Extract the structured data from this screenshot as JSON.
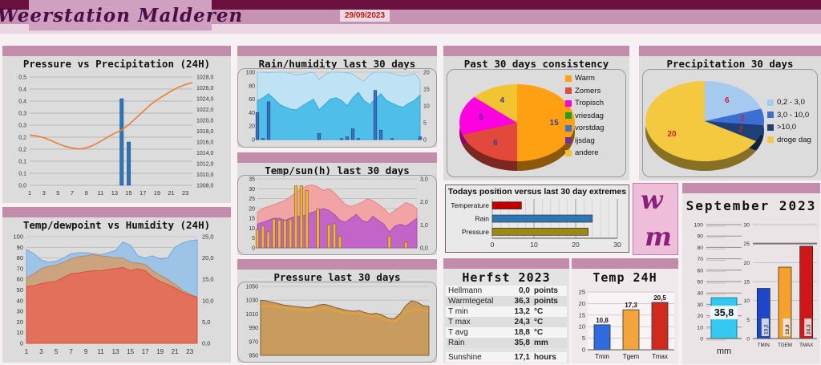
{
  "header": {
    "title": "Weerstation Malderen",
    "date": "29/09/2023",
    "logo_letters": {
      "top": "w",
      "bottom": "m"
    }
  },
  "colors": {
    "band_dark": "#6a1140",
    "band_mid": "#c793b2",
    "band_light": "#ead6e2",
    "panel_strip": "#c38cab",
    "panel_body": "#dcdcdc",
    "date_text": "#c41111"
  },
  "ui": {
    "panels": {
      "p1_title": "Pressure vs Precipitation (24H)",
      "p2_title": "Temp/dewpoint vs Humidity (24H)",
      "p3_title": "Rain/humidity last 30 days",
      "p4_title": "Temp/sun(h) last 30 days",
      "p5_title": "Pressure last 30 days",
      "p6_title": "Past 30 days consistency",
      "p7_title": "Precipitation 30 days",
      "p8_title": "Todays position versus last 30 day extremes",
      "p10_title": "Herfst 2023",
      "p11_title": "Temp 24H",
      "p12_title": "September 2023"
    },
    "herfst_rows": [
      {
        "label": "Hellmann",
        "value": "0,0",
        "unit": "points"
      },
      {
        "label": "Warmtegetal",
        "value": "36,3",
        "unit": "points"
      },
      {
        "label": "T min",
        "value": "13,2",
        "unit": "°C"
      },
      {
        "label": "T max",
        "value": "24,3",
        "unit": "°C"
      },
      {
        "label": "T avg",
        "value": "18,8",
        "unit": "°C"
      },
      {
        "label": "Rain",
        "value": "35,8",
        "unit": "mm"
      },
      {
        "label": "Sunshine",
        "value": "17,1",
        "unit": "hours"
      }
    ]
  },
  "chart_data": [
    {
      "id": "pressure_precip_24h",
      "type": "line",
      "title": "Pressure vs Precipitation (24H)",
      "x_ticks": [
        "1",
        "3",
        "5",
        "7",
        "9",
        "11",
        "13",
        "15",
        "17",
        "19",
        "21",
        "23"
      ],
      "left_ticks": [
        "0,5",
        "0,4",
        "0,4",
        "0,3",
        "0,3",
        "0,2",
        "0,2",
        "0,1",
        "0,1",
        "0,0"
      ],
      "right_ticks": [
        "1028,0",
        "1026,0",
        "1024,0",
        "1022,0",
        "1020,0",
        "1018,0",
        "1016,0",
        "1014,0",
        "1012,0",
        "1010,0",
        "1008,0"
      ],
      "left_range": [
        0,
        0.5
      ],
      "right_range": [
        1008,
        1028
      ],
      "series": [
        {
          "name": "pressure_hpa",
          "color": "#ED7D31",
          "values": [
            1017.3,
            1017.1,
            1016.8,
            1016.3,
            1015.7,
            1015.2,
            1014.9,
            1014.7,
            1014.9,
            1015.4,
            1016.1,
            1016.9,
            1017.6,
            1018.2,
            1019.2,
            1020.4,
            1021.6,
            1022.8,
            1023.8,
            1024.6,
            1025.4,
            1026.1,
            1026.6,
            1027.0
          ]
        },
        {
          "name": "rain",
          "color": "#2E75B6",
          "values": [
            0,
            0,
            0,
            0,
            0,
            0,
            0,
            0,
            0,
            0,
            0,
            0,
            0,
            0.4,
            0.2,
            0,
            0,
            0,
            0,
            0,
            0,
            0,
            0,
            0
          ]
        }
      ]
    },
    {
      "id": "temp_dew_humidity_24h",
      "type": "area",
      "title": "Temp/dewpoint vs Humidity (24H)",
      "x_ticks": [
        "1",
        "3",
        "5",
        "7",
        "9",
        "11",
        "13",
        "15",
        "17",
        "19",
        "21",
        "23"
      ],
      "left_ticks": [
        "100",
        "90",
        "80",
        "70",
        "60",
        "50",
        "40",
        "30",
        "20",
        "10",
        "0"
      ],
      "right_ticks": [
        "25,0",
        "20,0",
        "15,0",
        "10,0",
        "5,0",
        "0,0"
      ],
      "left_range": [
        0,
        100
      ],
      "right_range": [
        0,
        25
      ],
      "series": [
        {
          "name": "humidity_pct",
          "color": "#9DC3E6",
          "stroke": "#6FA8DC",
          "values": [
            88,
            84,
            78,
            76,
            77,
            80,
            84,
            85,
            85,
            84,
            83,
            85,
            87,
            95,
            92,
            82,
            80,
            82,
            79,
            80,
            90,
            94,
            96,
            97
          ]
        },
        {
          "name": "temp_c",
          "color": "#CBA47F",
          "stroke": "#B98A5E",
          "values": [
            15.3,
            16.3,
            17.5,
            18.0,
            18.3,
            19.0,
            19.8,
            20.3,
            20.5,
            20.8,
            20.5,
            20.3,
            20.0,
            20.0,
            19.0,
            18.8,
            18.5,
            17.0,
            16.0,
            15.0,
            13.8,
            12.5,
            11.5,
            10.8
          ]
        },
        {
          "name": "dewpoint_c",
          "color": "#E2705A",
          "stroke": "#D05540",
          "values": [
            13.3,
            13.5,
            14.0,
            14.3,
            14.5,
            15.5,
            16.3,
            16.5,
            16.8,
            17.0,
            17.0,
            17.3,
            17.5,
            17.8,
            17.0,
            17.5,
            17.0,
            15.5,
            14.5,
            13.8,
            13.0,
            12.0,
            11.3,
            10.8
          ]
        }
      ]
    },
    {
      "id": "rain_humidity_30d",
      "type": "area",
      "title": "Rain/humidity last 30 days",
      "left_ticks": [
        "100",
        "80",
        "60",
        "40",
        "20",
        "0"
      ],
      "right_ticks": [
        "20",
        "15",
        "10",
        "5",
        "0"
      ],
      "left_range": [
        0,
        100
      ],
      "right_range": [
        0,
        20
      ],
      "series": [
        {
          "name": "humidity_max",
          "color": "#BFE3F5",
          "stroke": "#8CC6E8",
          "values": [
            100,
            100,
            99,
            100,
            100,
            100,
            98,
            96,
            97,
            99,
            100,
            89,
            96,
            100,
            100,
            100,
            99,
            97,
            91,
            87,
            96,
            100,
            100,
            100,
            98,
            96,
            94,
            96,
            98,
            88
          ]
        },
        {
          "name": "humidity_min",
          "color": "#4FBFEA",
          "stroke": "#2DA8DD",
          "values": [
            58,
            62,
            68,
            60,
            52,
            48,
            45,
            44,
            50,
            55,
            60,
            44,
            52,
            60,
            62,
            58,
            50,
            62,
            70,
            58,
            52,
            60,
            68,
            58,
            54,
            50,
            48,
            54,
            58,
            66
          ]
        },
        {
          "name": "rain_mm",
          "color": "#3A72C8",
          "values": [
            8,
            0.3,
            11.2,
            0,
            0,
            0,
            0,
            0,
            0,
            0,
            0,
            1.8,
            0,
            0,
            0,
            0.3,
            0.8,
            3.2,
            0.3,
            0,
            0,
            14.6,
            2.8,
            0,
            0.3,
            0,
            0,
            0,
            0,
            0.8
          ]
        }
      ]
    },
    {
      "id": "temp_sun_30d",
      "type": "area",
      "title": "Temp/sun(h) last 30 days",
      "left_ticks": [
        "35",
        "30",
        "25",
        "20",
        "15",
        "10",
        "5",
        "0"
      ],
      "right_ticks": [
        "3,0",
        "2,0",
        "1,0",
        "0,0"
      ],
      "left_range": [
        0,
        35
      ],
      "right_range": [
        0,
        3
      ],
      "series": [
        {
          "name": "temp_max_c",
          "color": "#F2A3A3",
          "stroke": "#E08888",
          "values": [
            18,
            20,
            21,
            22,
            23,
            24,
            26,
            28,
            30,
            31.5,
            32,
            31,
            29,
            30,
            28,
            25,
            22,
            21,
            22,
            23,
            25,
            24,
            22,
            20,
            17,
            19,
            21,
            23,
            22,
            20
          ]
        },
        {
          "name": "temp_min_c",
          "color": "#C364C8",
          "stroke": "#A84FAE",
          "values": [
            12,
            13,
            14,
            15,
            15,
            14,
            15,
            16,
            16,
            17,
            18,
            19,
            20,
            19,
            17,
            14,
            13,
            15,
            17,
            14,
            13,
            16,
            14,
            12,
            8,
            11,
            12,
            11,
            13,
            15
          ]
        },
        {
          "name": "sun_hours",
          "color": "#EBB33C",
          "values": [
            0.8,
            0.95,
            0.7,
            1.25,
            1.2,
            1.2,
            1.25,
            2.7,
            2.7,
            2.5,
            0,
            1.7,
            0,
            1.0,
            1.05,
            0.5,
            0,
            0,
            0,
            0,
            0,
            0,
            0,
            0,
            0.5,
            0,
            0,
            0.25,
            0,
            0
          ]
        }
      ]
    },
    {
      "id": "pressure_30d",
      "type": "area",
      "title": "Pressure last 30 days",
      "left_ticks": [
        "1050",
        "1030",
        "1010",
        "990",
        "970",
        "950"
      ],
      "left_range": [
        950,
        1050
      ],
      "series": [
        {
          "name": "pressure_max",
          "color": "#C79C5E",
          "stroke": "#7D6036",
          "values": [
            1030,
            1029,
            1027,
            1025,
            1023,
            1022,
            1021,
            1020,
            1019,
            1020,
            1023,
            1024,
            1022,
            1019,
            1017,
            1015,
            1014,
            1015,
            1012,
            1010,
            1011,
            1008,
            1004,
            1003,
            1010,
            1022,
            1029,
            1027,
            1022,
            1021
          ]
        },
        {
          "name": "pressure_min",
          "color": "#F2A229",
          "values": [
            1020,
            1022,
            1021,
            1020,
            1019,
            1018,
            1017,
            1016,
            1015,
            1016,
            1018,
            1019,
            1017,
            1014,
            1012,
            1011,
            1010,
            1011,
            1008,
            1006,
            1007,
            1004,
            1000,
            999,
            1004,
            1012,
            1016,
            1017,
            1015,
            1014
          ]
        }
      ]
    },
    {
      "id": "consistency_pie",
      "type": "pie",
      "title": "Past 30 days consistency",
      "label_color": "#3C3C8E",
      "slices": [
        {
          "label": "Warm",
          "value": 15,
          "color": "#FFA013"
        },
        {
          "label": "Zomers",
          "value": 6,
          "color": "#E2493B"
        },
        {
          "label": "Tropisch",
          "value": 5,
          "color": "#FF00E0"
        },
        {
          "label": "vriesdag",
          "value": 0,
          "color": "#21A121"
        },
        {
          "label": "vorstdag",
          "value": 0,
          "color": "#4472C4"
        },
        {
          "label": "ijsdag",
          "value": 0,
          "color": "#7030A0"
        },
        {
          "label": "andere",
          "value": 4,
          "color": "#F2C431"
        }
      ]
    },
    {
      "id": "precip_pie",
      "type": "pie",
      "title": "Precipitation 30 days",
      "label_color": "#CC2222",
      "slices": [
        {
          "label": "0,2 - 3,0",
          "value": 6,
          "color": "#A6C9F0"
        },
        {
          "label": "3,0 - 10,0",
          "value": 2,
          "color": "#3B6FD4"
        },
        {
          "label": ">10,0",
          "value": 2,
          "color": "#1F3F77"
        },
        {
          "label": "droge dag",
          "value": 20,
          "color": "#F5C93F"
        }
      ]
    },
    {
      "id": "extremes_bar",
      "type": "bar",
      "title": "Todays position versus last 30 day extremes",
      "categories": [
        "Temperature",
        "Rain",
        "Pressure"
      ],
      "values": [
        7,
        24,
        23
      ],
      "colors": [
        "#C00000",
        "#2E75B6",
        "#9C8812"
      ],
      "x_ticks": [
        "0",
        "10",
        "20",
        "30"
      ],
      "xlim": [
        0,
        30
      ]
    },
    {
      "id": "temp_24h_bar",
      "type": "bar",
      "title": "Temp 24H",
      "categories": [
        "Tmin",
        "Tgem",
        "Tmax"
      ],
      "values": [
        10.8,
        17.3,
        20.5
      ],
      "value_labels": [
        "10,8",
        "17,3",
        "20,5"
      ],
      "colors": [
        "#2F6BDE",
        "#F5A33B",
        "#D02A1F"
      ],
      "y_ticks": [
        "25",
        "20",
        "15",
        "10",
        "5",
        "0"
      ],
      "ylim": [
        0,
        25
      ]
    },
    {
      "id": "september_mm_bar",
      "type": "bar",
      "title": "September 2023",
      "categories": [
        "mm"
      ],
      "values": [
        35.8
      ],
      "value_labels": [
        "35,8"
      ],
      "colors": [
        "#35C8F2"
      ],
      "y_ticks": [
        "100",
        "90",
        "80",
        "70",
        "60",
        "50",
        "40",
        "30",
        "20",
        "10",
        "0"
      ],
      "ylim": [
        0,
        100
      ]
    },
    {
      "id": "september_temp_bar",
      "type": "bar",
      "title": "September 2023",
      "categories": [
        "TMIN",
        "TGEM",
        "TMAX"
      ],
      "values": [
        13.2,
        18.8,
        24.3
      ],
      "value_labels": [
        "13,2",
        "18,8",
        "24,3"
      ],
      "colors": [
        "#1D46C8",
        "#F8A02C",
        "#D01616"
      ],
      "y_ticks": [
        "30",
        "25",
        "20",
        "15",
        "10",
        "5",
        "0"
      ],
      "ylim": [
        0,
        30
      ],
      "highlight_gridline": 25
    }
  ]
}
